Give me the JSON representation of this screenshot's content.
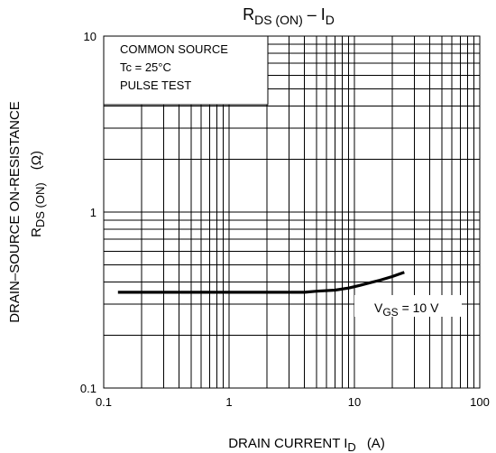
{
  "chart_data": {
    "type": "line",
    "title": {
      "main": "R",
      "sub1": "DS (ON)",
      "mid": " – I",
      "sub2": "D"
    },
    "xlabel": {
      "main": "DRAIN CURRENT   I",
      "sub": "D",
      "unit": "(A)"
    },
    "ylabel": {
      "line1": "DRAIN–SOURCE ON-RESISTANCE",
      "line2_main": "R",
      "line2_sub": "DS (ON)",
      "line2_unit": "(Ω)"
    },
    "x_scale": "log",
    "y_scale": "log",
    "xlim": [
      0.1,
      100
    ],
    "ylim": [
      0.1,
      10
    ],
    "x_ticks": [
      0.1,
      1,
      10,
      100
    ],
    "x_tick_labels": [
      "0.1",
      "1",
      "10",
      "100"
    ],
    "y_ticks": [
      0.1,
      1,
      10
    ],
    "y_tick_labels": [
      "0.1",
      "1",
      "10"
    ],
    "grid": true,
    "conditions": [
      "COMMON SOURCE",
      "Tc = 25°C",
      "PULSE TEST"
    ],
    "series": [
      {
        "label_main": "V",
        "label_sub": "GS",
        "label_rest": " = 10 V",
        "x": [
          0.13,
          0.5,
          1,
          2,
          4,
          5,
          7,
          9,
          11,
          13,
          16,
          20,
          25
        ],
        "y": [
          0.35,
          0.35,
          0.35,
          0.35,
          0.35,
          0.355,
          0.36,
          0.37,
          0.383,
          0.395,
          0.41,
          0.43,
          0.455
        ]
      }
    ]
  }
}
